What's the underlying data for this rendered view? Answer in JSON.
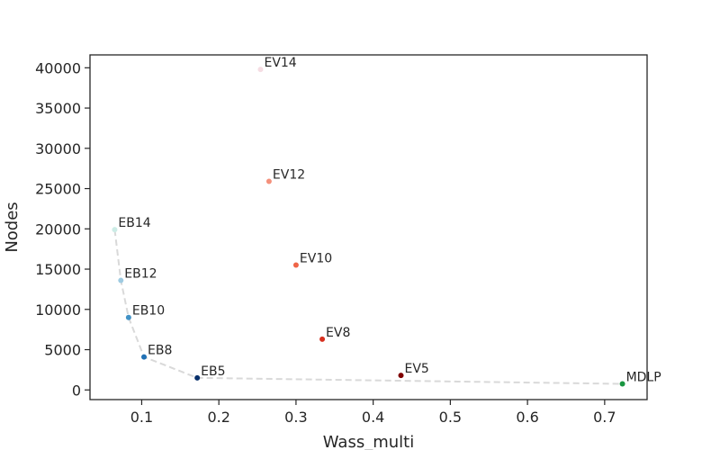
{
  "chart_data": {
    "type": "scatter",
    "title": "",
    "xlabel": "Wass_multi",
    "ylabel": "Nodes",
    "xlim": [
      0.033,
      0.755
    ],
    "ylim": [
      -1200,
      41600
    ],
    "xticks": [
      0.1,
      0.2,
      0.3,
      0.4,
      0.5,
      0.6,
      0.7
    ],
    "xtick_labels": [
      "0.1",
      "0.2",
      "0.3",
      "0.4",
      "0.5",
      "0.6",
      "0.7"
    ],
    "yticks": [
      0,
      5000,
      10000,
      15000,
      20000,
      25000,
      30000,
      35000,
      40000
    ],
    "ytick_labels": [
      "0",
      "5000",
      "10000",
      "15000",
      "20000",
      "25000",
      "30000",
      "35000",
      "40000"
    ],
    "grid": false,
    "points": [
      {
        "label": "EV14",
        "x": 0.254,
        "y": 39800,
        "color": "#f5dde3"
      },
      {
        "label": "EV12",
        "x": 0.265,
        "y": 25900,
        "color": "#f4917c"
      },
      {
        "label": "EV10",
        "x": 0.3,
        "y": 15500,
        "color": "#ef6548"
      },
      {
        "label": "EV8",
        "x": 0.334,
        "y": 6300,
        "color": "#d7301f"
      },
      {
        "label": "EV5",
        "x": 0.436,
        "y": 1800,
        "color": "#7f0000"
      },
      {
        "label": "EB14",
        "x": 0.065,
        "y": 19900,
        "color": "#ccece6"
      },
      {
        "label": "EB12",
        "x": 0.073,
        "y": 13600,
        "color": "#9ecae1"
      },
      {
        "label": "EB10",
        "x": 0.083,
        "y": 9000,
        "color": "#4292c6"
      },
      {
        "label": "EB8",
        "x": 0.103,
        "y": 4100,
        "color": "#2171b5"
      },
      {
        "label": "EB5",
        "x": 0.172,
        "y": 1500,
        "color": "#08306b"
      },
      {
        "label": "MDLP",
        "x": 0.723,
        "y": 750,
        "color": "#1a9641"
      }
    ],
    "frontier": {
      "style": "dashed",
      "color": "#d9d9d9",
      "points": [
        [
          0.065,
          19900
        ],
        [
          0.073,
          13600
        ],
        [
          0.083,
          9000
        ],
        [
          0.103,
          4100
        ],
        [
          0.172,
          1500
        ],
        [
          0.723,
          750
        ]
      ]
    }
  }
}
